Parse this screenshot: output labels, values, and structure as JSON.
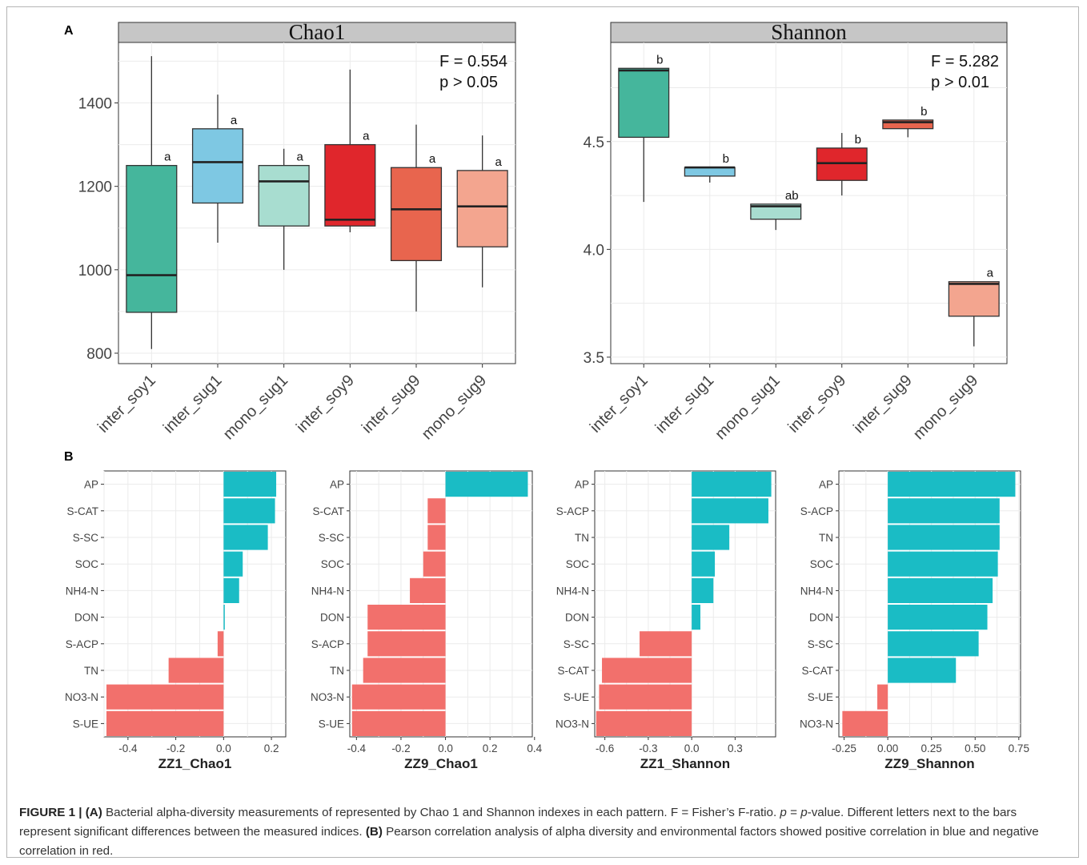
{
  "panel_labels": {
    "a": "A",
    "b": "B"
  },
  "chart_data": [
    {
      "type": "box",
      "title": "Chao1",
      "categories": [
        "inter_soy1",
        "inter_sug1",
        "mono_sug1",
        "inter_soy9",
        "inter_sug9",
        "mono_sug9"
      ],
      "boxes": [
        {
          "min": 810,
          "q1": 898,
          "median": 987,
          "q3": 1250,
          "max": 1512,
          "letter": "a"
        },
        {
          "min": 1065,
          "q1": 1160,
          "median": 1258,
          "q3": 1338,
          "max": 1420,
          "letter": "a"
        },
        {
          "min": 1000,
          "q1": 1105,
          "median": 1212,
          "q3": 1250,
          "max": 1290,
          "letter": "a"
        },
        {
          "min": 1090,
          "q1": 1105,
          "median": 1120,
          "q3": 1300,
          "max": 1480,
          "letter": "a"
        },
        {
          "min": 900,
          "q1": 1022,
          "median": 1145,
          "q3": 1245,
          "max": 1348,
          "letter": "a"
        },
        {
          "min": 958,
          "q1": 1055,
          "median": 1152,
          "q3": 1238,
          "max": 1322,
          "letter": "a"
        }
      ],
      "colors": [
        "#45B69C",
        "#7EC8E3",
        "#A8DDD0",
        "#E0262C",
        "#E8654E",
        "#F3A58F"
      ],
      "ylim": [
        775,
        1545
      ],
      "yticks": [
        800,
        1000,
        1200,
        1400
      ],
      "annotation": [
        "F = 0.554",
        "p > 0.05"
      ],
      "grid": true
    },
    {
      "type": "box",
      "title": "Shannon",
      "categories": [
        "inter_soy1",
        "inter_sug1",
        "mono_sug1",
        "inter_soy9",
        "inter_sug9",
        "mono_sug9"
      ],
      "boxes": [
        {
          "min": 4.22,
          "q1": 4.52,
          "median": 4.83,
          "q3": 4.84,
          "max": 4.84,
          "letter": "b"
        },
        {
          "min": 4.31,
          "q1": 4.34,
          "median": 4.38,
          "q3": 4.38,
          "max": 4.38,
          "letter": "b"
        },
        {
          "min": 4.09,
          "q1": 4.14,
          "median": 4.2,
          "q3": 4.21,
          "max": 4.21,
          "letter": "ab"
        },
        {
          "min": 4.25,
          "q1": 4.32,
          "median": 4.4,
          "q3": 4.47,
          "max": 4.54,
          "letter": "b"
        },
        {
          "min": 4.52,
          "q1": 4.56,
          "median": 4.59,
          "q3": 4.6,
          "max": 4.6,
          "letter": "b"
        },
        {
          "min": 3.55,
          "q1": 3.69,
          "median": 3.84,
          "q3": 3.85,
          "max": 3.85,
          "letter": "a"
        }
      ],
      "colors": [
        "#45B69C",
        "#7EC8E3",
        "#A8DDD0",
        "#E0262C",
        "#E8654E",
        "#F3A58F"
      ],
      "ylim": [
        3.47,
        4.96
      ],
      "yticks": [
        3.5,
        4.0,
        4.5
      ],
      "annotation": [
        "F = 5.282",
        "p > 0.01"
      ],
      "grid": true
    },
    {
      "type": "bar",
      "orientation": "horizontal",
      "xlabel": "ZZ1_Chao1",
      "categories": [
        "AP",
        "S-CAT",
        "S-SC",
        "SOC",
        "NH4-N",
        "DON",
        "S-ACP",
        "TN",
        "NO3-N",
        "S-UE"
      ],
      "values": [
        0.22,
        0.215,
        0.185,
        0.08,
        0.065,
        0.005,
        -0.025,
        -0.23,
        -0.49,
        -0.49
      ],
      "xlim": [
        -0.5,
        0.26
      ],
      "xticks": [
        -0.4,
        -0.2,
        0.0,
        0.2
      ],
      "xtick_labels": [
        "-0.4",
        "-0.2",
        "0.0",
        "0.2"
      ],
      "colors": {
        "positive": "#1ABCC5",
        "negative": "#F2706C"
      },
      "grid": true
    },
    {
      "type": "bar",
      "orientation": "horizontal",
      "xlabel": "ZZ9_Chao1",
      "categories": [
        "AP",
        "S-CAT",
        "S-SC",
        "SOC",
        "NH4-N",
        "DON",
        "S-ACP",
        "TN",
        "NO3-N",
        "S-UE"
      ],
      "values": [
        0.37,
        -0.08,
        -0.08,
        -0.1,
        -0.16,
        -0.35,
        -0.35,
        -0.37,
        -0.42,
        -0.42
      ],
      "xlim": [
        -0.43,
        0.39
      ],
      "xticks": [
        -0.4,
        -0.2,
        0.0,
        0.2,
        0.4
      ],
      "xtick_labels": [
        "-0.4",
        "-0.2",
        "0.0",
        "0.2",
        "0.4"
      ],
      "colors": {
        "positive": "#1ABCC5",
        "negative": "#F2706C"
      },
      "grid": true
    },
    {
      "type": "bar",
      "orientation": "horizontal",
      "xlabel": "ZZ1_Shannon",
      "categories": [
        "AP",
        "S-ACP",
        "TN",
        "SOC",
        "NH4-N",
        "DON",
        "S-SC",
        "S-CAT",
        "S-UE",
        "NO3-N"
      ],
      "values": [
        0.55,
        0.53,
        0.26,
        0.16,
        0.15,
        0.06,
        -0.36,
        -0.62,
        -0.64,
        -0.66
      ],
      "xlim": [
        -0.67,
        0.58
      ],
      "xticks": [
        -0.6,
        -0.3,
        0.0,
        0.3
      ],
      "xtick_labels": [
        "-0.6",
        "-0.3",
        "0.0",
        "0.3"
      ],
      "colors": {
        "positive": "#1ABCC5",
        "negative": "#F2706C"
      },
      "grid": true
    },
    {
      "type": "bar",
      "orientation": "horizontal",
      "xlabel": "ZZ9_Shannon",
      "categories": [
        "AP",
        "S-ACP",
        "TN",
        "SOC",
        "NH4-N",
        "DON",
        "S-SC",
        "S-CAT",
        "S-UE",
        "NO3-N"
      ],
      "values": [
        0.73,
        0.64,
        0.64,
        0.63,
        0.6,
        0.57,
        0.52,
        0.39,
        -0.06,
        -0.26
      ],
      "xlim": [
        -0.28,
        0.76
      ],
      "xticks": [
        -0.25,
        0.0,
        0.25,
        0.5,
        0.75
      ],
      "xtick_labels": [
        "-0.25",
        "0.00",
        "0.25",
        "0.50",
        "0.75"
      ],
      "colors": {
        "positive": "#1ABCC5",
        "negative": "#F2706C"
      },
      "grid": true
    }
  ],
  "caption": {
    "figure_label": "FIGURE 1 | ",
    "a_label": "(A)",
    "a_text": " Bacterial alpha-diversity measurements of represented by Chao 1 and Shannon indexes in each pattern. F = Fisher’s F-ratio. ",
    "p_symbol": "p",
    "eq": " = ",
    "p_value": "p",
    "a_text2": "-value. Different letters next to the bars represent significant differences between the measured indices. ",
    "b_label": "(B)",
    "b_text": " Pearson correlation analysis of alpha diversity and environmental factors showed positive correlation in blue and negative correlation in red."
  }
}
